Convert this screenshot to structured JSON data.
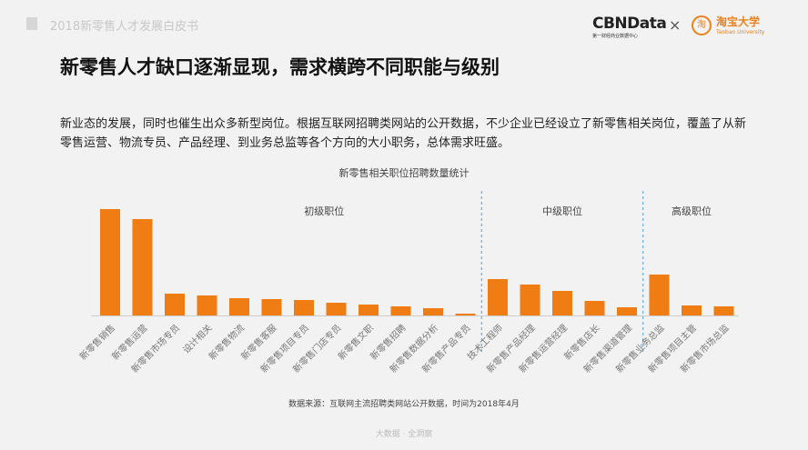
{
  "header": {
    "report_title": "2018新零售人才发展白皮书",
    "logo_cbn": "CBNData",
    "logo_cbn_sub": "第一财经商业数据中心",
    "times": "×",
    "logo_taobao": "淘宝大学",
    "logo_taobao_icon": "淘",
    "logo_taobao_sub": "Taobao University"
  },
  "title": "新零售人才缺口逐渐显现，需求横跨不同职能与级别",
  "paragraph": "新业态的发展，同时也催生出众多新型岗位。根据互联网招聘类网站的公开数据，不少企业已经设立了新零售相关岗位，覆盖了从新零售运营、物流专员、产品经理、到业务总监等各个方向的大小职务，总体需求旺盛。",
  "chart_data": {
    "type": "bar",
    "title": "新零售相关职位招聘数量统计",
    "groups": [
      {
        "label": "初级职位",
        "count": 12
      },
      {
        "label": "中级职位",
        "count": 5
      },
      {
        "label": "高级职位",
        "count": 3
      }
    ],
    "categories": [
      "新零售销售",
      "新零售运营",
      "新零售市场专员",
      "设计相关",
      "新零售物流",
      "新零售客服",
      "新零售项目专员",
      "新零售门店专员",
      "新零售文职",
      "新零售招聘",
      "新零售数据分析",
      "新零售产品专员",
      "技术工程师",
      "新零售产品经理",
      "新零售运营经理",
      "新零售店长",
      "新零售渠道管理",
      "新零售业务总监",
      "新零售项目主管",
      "新零售市场总监"
    ],
    "values": [
      117,
      106,
      24,
      22,
      19,
      18,
      17,
      14,
      12,
      10,
      8,
      2,
      40,
      34,
      27,
      16,
      9,
      45,
      11,
      10
    ],
    "color": "#f07c14",
    "xlabel": "",
    "ylabel": "",
    "grid": false
  },
  "source": "数据来源：互联网主流招聘类网站公开数据，时间为2018年4月",
  "footer": "大数据 · 全洞察"
}
